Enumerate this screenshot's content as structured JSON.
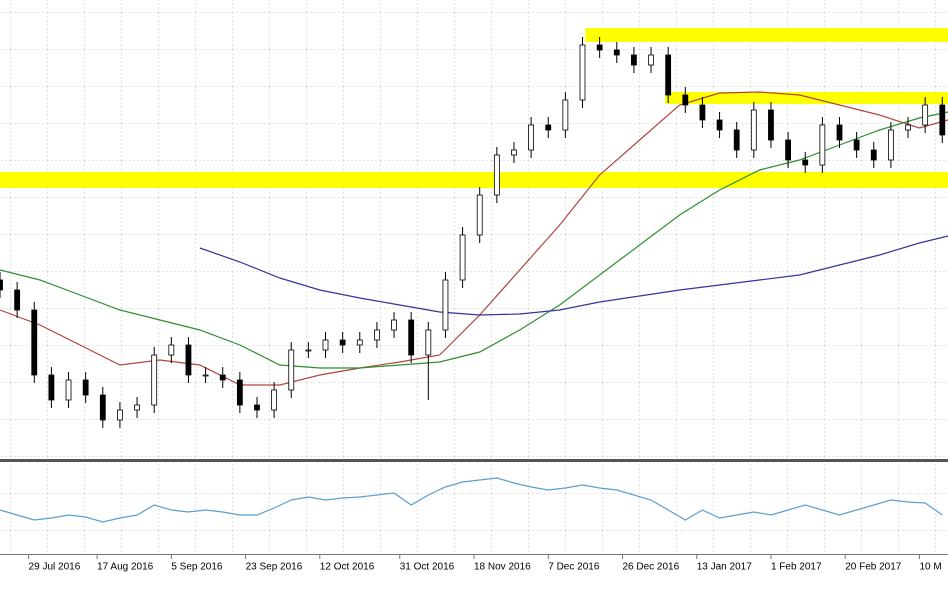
{
  "chart_data": {
    "type": "candlestick",
    "xlim": [
      0,
      166
    ],
    "ylim": [
      0,
      460
    ],
    "grid": true,
    "xticks": [
      {
        "value": 5,
        "label": "29 Jul 2016"
      },
      {
        "value": 17,
        "label": "17 Aug 2016"
      },
      {
        "value": 30,
        "label": "5 Sep 2016"
      },
      {
        "value": 43,
        "label": "23 Sep 2016"
      },
      {
        "value": 56,
        "label": "12 Oct 2016"
      },
      {
        "value": 70,
        "label": "31 Oct 2016"
      },
      {
        "value": 83,
        "label": "18 Nov 2016"
      },
      {
        "value": 96,
        "label": "7 Dec 2016"
      },
      {
        "value": 109,
        "label": "26 Dec 2016"
      },
      {
        "value": 122,
        "label": "13 Jan 2017"
      },
      {
        "value": 135,
        "label": "1 Feb 2017"
      },
      {
        "value": 148,
        "label": "20 Feb 2017"
      },
      {
        "value": 161,
        "label": "10 M"
      }
    ],
    "zones": [
      {
        "color": "#ffff00",
        "x_start": 102.5,
        "low": 418,
        "high": 432
      },
      {
        "color": "#ffff00",
        "x_start": 116.5,
        "low": 356,
        "high": 368
      },
      {
        "color": "#ffff00",
        "x_start": 0,
        "low": 272,
        "high": 288
      }
    ],
    "candles": {
      "up_color": "#ffffff",
      "down_color": "#000000",
      "x": [
        0,
        3,
        6,
        9,
        12,
        15,
        18,
        21,
        24,
        27,
        30,
        33,
        36,
        39,
        42,
        45,
        48,
        51,
        54,
        57,
        60,
        63,
        66,
        69,
        72,
        75,
        78,
        81,
        84,
        87,
        90,
        93,
        96,
        99,
        102,
        105,
        108,
        111,
        114,
        117,
        120,
        123,
        126,
        129,
        132,
        135,
        138,
        141,
        144,
        147,
        150,
        153,
        156,
        159,
        162,
        165
      ],
      "open": [
        180,
        170,
        150,
        85,
        60,
        80,
        65,
        40,
        50,
        55,
        105,
        115,
        85,
        85,
        80,
        55,
        50,
        70,
        110,
        110,
        120,
        115,
        120,
        130,
        140,
        105,
        130,
        180,
        225,
        265,
        305,
        310,
        335,
        330,
        360,
        415,
        410,
        405,
        395,
        405,
        365,
        355,
        340,
        330,
        310,
        350,
        320,
        300,
        295,
        335,
        320,
        310,
        300,
        330,
        335,
        355
      ],
      "high": [
        188,
        178,
        158,
        93,
        88,
        88,
        73,
        58,
        63,
        113,
        123,
        123,
        93,
        93,
        88,
        63,
        78,
        118,
        118,
        128,
        128,
        128,
        138,
        148,
        148,
        138,
        188,
        233,
        273,
        313,
        318,
        343,
        343,
        368,
        423,
        423,
        418,
        413,
        413,
        413,
        373,
        363,
        348,
        338,
        358,
        358,
        328,
        308,
        343,
        343,
        328,
        318,
        338,
        343,
        363,
        363
      ],
      "low": [
        162,
        142,
        77,
        52,
        52,
        57,
        32,
        32,
        42,
        47,
        97,
        77,
        77,
        72,
        47,
        42,
        42,
        62,
        102,
        102,
        107,
        107,
        112,
        122,
        97,
        60,
        122,
        172,
        217,
        257,
        297,
        302,
        322,
        322,
        352,
        402,
        397,
        387,
        387,
        357,
        347,
        332,
        322,
        302,
        302,
        312,
        292,
        287,
        287,
        312,
        302,
        292,
        292,
        322,
        327,
        317
      ],
      "close": [
        170,
        150,
        85,
        60,
        80,
        65,
        40,
        50,
        55,
        105,
        115,
        85,
        85,
        80,
        55,
        50,
        70,
        110,
        110,
        120,
        115,
        120,
        130,
        140,
        105,
        130,
        180,
        225,
        265,
        305,
        310,
        335,
        330,
        360,
        415,
        410,
        405,
        395,
        405,
        365,
        355,
        340,
        330,
        310,
        350,
        320,
        300,
        295,
        335,
        320,
        310,
        300,
        330,
        335,
        355,
        325
      ]
    },
    "moving_averages": [
      {
        "color": "#b0453c",
        "x": [
          0,
          7,
          14,
          21,
          28,
          35,
          42,
          49,
          56,
          63,
          70,
          77,
          84,
          91,
          98,
          105,
          112,
          119,
          126,
          133,
          140,
          147,
          154,
          161,
          166
        ],
        "values": [
          150,
          135,
          115,
          95,
          100,
          95,
          75,
          75,
          85,
          92,
          98,
          105,
          145,
          190,
          235,
          285,
          320,
          355,
          367,
          368,
          365,
          355,
          345,
          332,
          340
        ]
      },
      {
        "color": "#2f8f2f",
        "x": [
          0,
          7,
          14,
          21,
          28,
          35,
          42,
          49,
          56,
          63,
          70,
          77,
          84,
          91,
          98,
          105,
          112,
          119,
          126,
          133,
          140,
          147,
          154,
          161,
          166
        ],
        "values": [
          190,
          180,
          165,
          150,
          140,
          130,
          115,
          95,
          92,
          92,
          95,
          98,
          108,
          130,
          155,
          185,
          215,
          245,
          270,
          290,
          300,
          315,
          330,
          342,
          348
        ]
      },
      {
        "color": "#35359a",
        "x": [
          0,
          7,
          14,
          21,
          28,
          35,
          42,
          49,
          56,
          63,
          70,
          77,
          84,
          91,
          98,
          105,
          112,
          119,
          126,
          133,
          140,
          147,
          154,
          161,
          166
        ],
        "values": [
          null,
          null,
          null,
          null,
          null,
          212,
          198,
          182,
          170,
          162,
          155,
          148,
          145,
          146,
          150,
          158,
          164,
          170,
          175,
          180,
          185,
          195,
          205,
          217,
          224
        ]
      }
    ],
    "oscillator": {
      "color": "#5b9fd0",
      "ylim": [
        0,
        90
      ],
      "x": [
        0,
        3,
        6,
        9,
        12,
        15,
        18,
        21,
        24,
        27,
        30,
        33,
        36,
        39,
        42,
        45,
        48,
        51,
        54,
        57,
        60,
        63,
        66,
        69,
        72,
        75,
        78,
        81,
        84,
        87,
        90,
        93,
        96,
        99,
        102,
        105,
        108,
        111,
        114,
        117,
        120,
        123,
        126,
        129,
        132,
        135,
        138,
        141,
        144,
        147,
        150,
        153,
        156,
        159,
        162,
        165
      ],
      "values": [
        45,
        40,
        35,
        37,
        40,
        38,
        33,
        37,
        40,
        50,
        45,
        43,
        45,
        43,
        40,
        40,
        47,
        55,
        58,
        55,
        57,
        58,
        60,
        62,
        50,
        60,
        68,
        73,
        75,
        77,
        72,
        68,
        65,
        67,
        70,
        67,
        65,
        60,
        55,
        45,
        35,
        45,
        37,
        40,
        43,
        40,
        45,
        50,
        45,
        40,
        45,
        50,
        55,
        53,
        52,
        40
      ]
    }
  }
}
